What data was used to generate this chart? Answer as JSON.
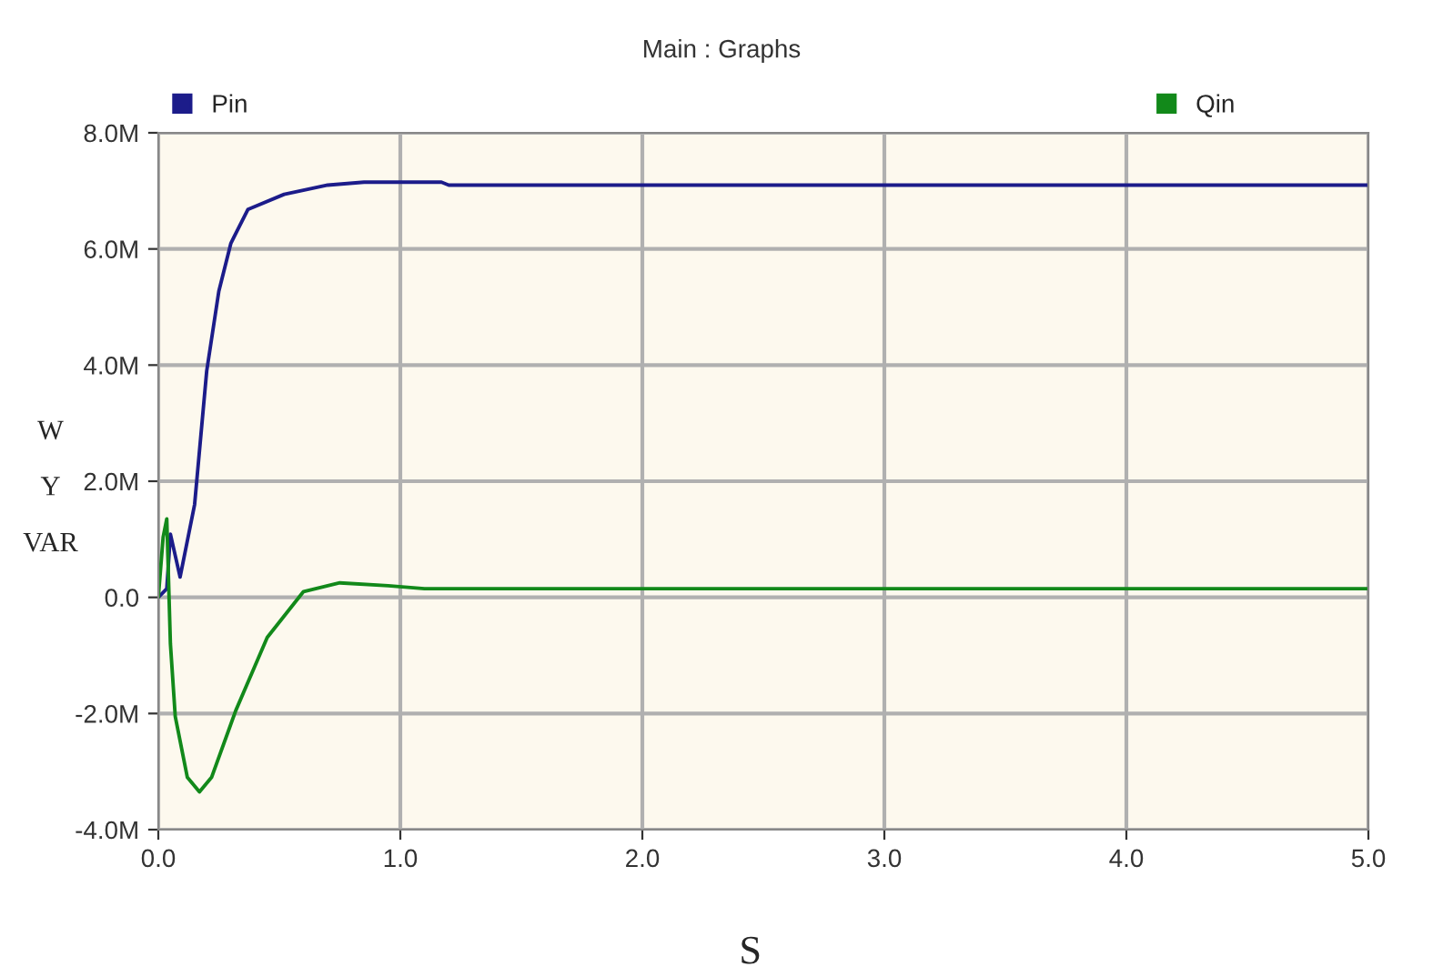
{
  "chart_data": {
    "type": "line",
    "title": "Main : Graphs",
    "xlabel": "S",
    "ylabel": "W\nY\nVAR",
    "series": [
      {
        "name": "Pin",
        "color": "#1c1c8a",
        "x": [
          0,
          0.035,
          0.05,
          0.09,
          0.15,
          0.2,
          0.25,
          0.3,
          0.37,
          0.52,
          0.7,
          0.85,
          1.17,
          1.2,
          5.0
        ],
        "values": [
          0,
          0.15,
          1.09,
          0.35,
          1.6,
          3.9,
          5.27,
          6.1,
          6.68,
          6.94,
          7.1,
          7.15,
          7.15,
          7.1,
          7.1
        ]
      },
      {
        "name": "Qin",
        "color": "#12891a",
        "x": [
          0,
          0.02,
          0.035,
          0.05,
          0.07,
          0.12,
          0.17,
          0.22,
          0.32,
          0.45,
          0.6,
          0.75,
          0.95,
          1.1,
          5.0
        ],
        "values": [
          0,
          1.04,
          1.35,
          -0.8,
          -2.05,
          -3.1,
          -3.35,
          -3.1,
          -1.95,
          -0.69,
          0.1,
          0.25,
          0.2,
          0.15,
          0.15
        ]
      }
    ],
    "xlim": [
      0,
      5
    ],
    "xticks": [
      {
        "value": 0,
        "label": "0.0"
      },
      {
        "value": 1,
        "label": "1.0"
      },
      {
        "value": 2,
        "label": "2.0"
      },
      {
        "value": 3,
        "label": "3.0"
      },
      {
        "value": 4,
        "label": "4.0"
      },
      {
        "value": 5,
        "label": "5.0"
      }
    ],
    "ylim": [
      -4,
      8
    ],
    "yticks": [
      {
        "value": -4,
        "label": "-4.0M"
      },
      {
        "value": -2,
        "label": "-2.0M"
      },
      {
        "value": 0,
        "label": "0.0"
      },
      {
        "value": 2,
        "label": "2.0M"
      },
      {
        "value": 4,
        "label": "4.0M"
      },
      {
        "value": 6,
        "label": "6.0M"
      },
      {
        "value": 8,
        "label": "8.0M"
      }
    ],
    "grid": true,
    "legend": "top",
    "marker": "none",
    "line_style": "solid"
  }
}
